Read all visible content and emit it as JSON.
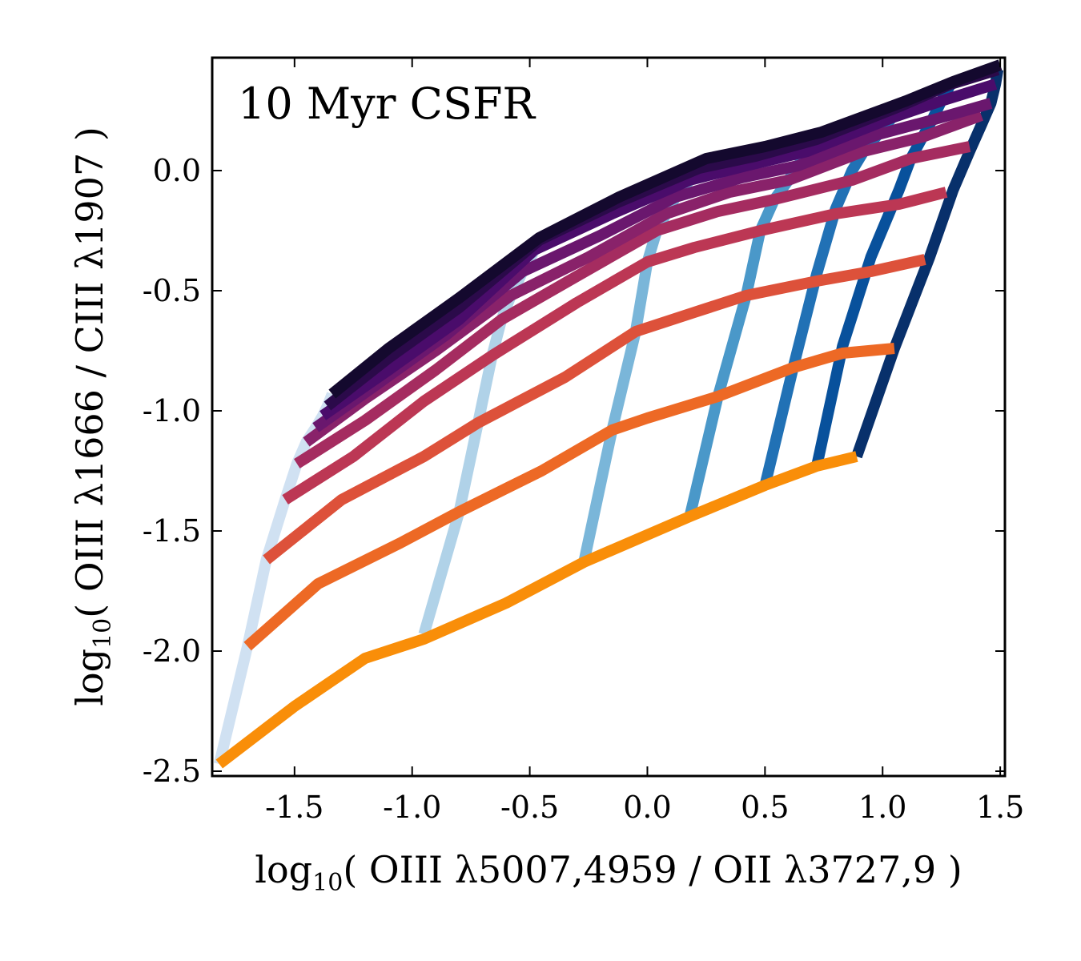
{
  "chart_data": {
    "type": "line",
    "annotation": "10 Myr CSFR",
    "xlabel": {
      "pre": "log",
      "sub": "10",
      "text": "( OIII λ5007,4959 / OII λ3727,9 )"
    },
    "ylabel": {
      "pre": "log",
      "sub": "10",
      "text": "( OIII λ1666 / CIII λ1907 )"
    },
    "xlim": [
      -1.85,
      1.52
    ],
    "ylim": [
      -2.52,
      0.47
    ],
    "xticks": [
      -1.5,
      -1.0,
      -0.5,
      0.0,
      0.5,
      1.0,
      1.5
    ],
    "xtick_labels": [
      "-1.5",
      "-1.0",
      "-0.5",
      "0.0",
      "0.5",
      "1.0",
      "1.5"
    ],
    "yticks": [
      0.0,
      -0.5,
      -1.0,
      -1.5,
      -2.0,
      -2.5
    ],
    "ytick_labels": [
      "0.0",
      "-0.5",
      "-1.0",
      "-1.5",
      "-2.0",
      "-2.5"
    ],
    "blue_series": [
      {
        "name": "blue-1",
        "color": "#d0e1f2",
        "x": [
          -1.82,
          -1.7,
          -1.62,
          -1.54,
          -1.49,
          -1.45,
          -1.41,
          -1.38,
          -1.36,
          -1.34
        ],
        "y": [
          -2.47,
          -1.98,
          -1.62,
          -1.37,
          -1.22,
          -1.13,
          -1.07,
          -1.02,
          -0.98,
          -0.93
        ]
      },
      {
        "name": "blue-2",
        "color": "#b0d2e8",
        "x": [
          -0.95,
          -0.8,
          -0.72,
          -0.66,
          -0.62,
          -0.58,
          -0.53,
          -0.48,
          -0.46
        ],
        "y": [
          -1.93,
          -1.42,
          -1.05,
          -0.77,
          -0.62,
          -0.52,
          -0.42,
          -0.33,
          -0.29
        ]
      },
      {
        "name": "blue-3",
        "color": "#7ab6d9",
        "x": [
          -0.27,
          -0.15,
          -0.05,
          0.0,
          0.04,
          0.08,
          0.12,
          0.18,
          0.22,
          0.25
        ],
        "y": [
          -1.63,
          -1.08,
          -0.67,
          -0.38,
          -0.25,
          -0.18,
          -0.11,
          -0.04,
          0.01,
          0.05
        ]
      },
      {
        "name": "blue-4",
        "color": "#4a98c9",
        "x": [
          0.18,
          0.3,
          0.42,
          0.48,
          0.54,
          0.6,
          0.64,
          0.68,
          0.72
        ],
        "y": [
          -1.44,
          -0.94,
          -0.52,
          -0.25,
          -0.12,
          -0.04,
          0.02,
          0.08,
          0.13
        ]
      },
      {
        "name": "blue-5",
        "color": "#2171b5",
        "x": [
          0.5,
          0.62,
          0.72,
          0.8,
          0.87,
          0.92,
          0.98,
          1.04,
          1.08
        ],
        "y": [
          -1.31,
          -0.82,
          -0.43,
          -0.16,
          0.0,
          0.08,
          0.15,
          0.22,
          0.27
        ]
      },
      {
        "name": "blue-6",
        "color": "#08519c",
        "x": [
          0.72,
          0.83,
          0.95,
          1.07,
          1.12,
          1.17,
          1.21,
          1.25,
          1.29
        ],
        "y": [
          -1.23,
          -0.73,
          -0.36,
          -0.08,
          0.05,
          0.14,
          0.21,
          0.29,
          0.36
        ]
      },
      {
        "name": "blue-7",
        "color": "#08306b",
        "x": [
          0.89,
          1.05,
          1.2,
          1.3,
          1.37,
          1.42,
          1.46,
          1.48,
          1.49
        ],
        "y": [
          -1.19,
          -0.74,
          -0.36,
          -0.08,
          0.08,
          0.19,
          0.28,
          0.36,
          0.42
        ]
      }
    ],
    "orange_series": [
      {
        "name": "line-1",
        "color": "#f98e09",
        "x": [
          -1.82,
          -1.5,
          -1.2,
          -0.95,
          -0.6,
          -0.27,
          0.18,
          0.5,
          0.72,
          0.89
        ],
        "y": [
          -2.47,
          -2.23,
          -2.03,
          -1.95,
          -1.8,
          -1.63,
          -1.44,
          -1.31,
          -1.23,
          -1.19
        ]
      },
      {
        "name": "line-2",
        "color": "#ed6925",
        "x": [
          -1.7,
          -1.4,
          -1.05,
          -0.8,
          -0.45,
          -0.15,
          0.0,
          0.3,
          0.62,
          0.83,
          1.05
        ],
        "y": [
          -1.98,
          -1.72,
          -1.55,
          -1.42,
          -1.25,
          -1.08,
          -1.03,
          -0.94,
          -0.82,
          -0.76,
          -0.74
        ]
      },
      {
        "name": "line-3",
        "color": "#dd513a",
        "x": [
          -1.62,
          -1.3,
          -0.95,
          -0.72,
          -0.35,
          -0.05,
          0.2,
          0.42,
          0.72,
          0.95,
          1.18
        ],
        "y": [
          -1.62,
          -1.37,
          -1.19,
          -1.05,
          -0.86,
          -0.67,
          -0.59,
          -0.52,
          -0.46,
          -0.42,
          -0.37
        ]
      },
      {
        "name": "line-4",
        "color": "#bc3754",
        "x": [
          -1.54,
          -1.25,
          -0.95,
          -0.66,
          -0.3,
          0.0,
          0.2,
          0.48,
          0.8,
          1.07,
          1.27
        ],
        "y": [
          -1.37,
          -1.19,
          -0.96,
          -0.77,
          -0.55,
          -0.38,
          -0.32,
          -0.25,
          -0.18,
          -0.14,
          -0.09
        ]
      },
      {
        "name": "line-5",
        "color": "#a52c60",
        "x": [
          -1.49,
          -1.2,
          -0.9,
          -0.62,
          -0.3,
          0.04,
          0.3,
          0.54,
          0.87,
          1.12,
          1.37
        ],
        "y": [
          -1.22,
          -1.04,
          -0.83,
          -0.62,
          -0.44,
          -0.25,
          -0.17,
          -0.12,
          -0.04,
          0.05,
          0.1
        ]
      },
      {
        "name": "line-6",
        "color": "#89226a",
        "x": [
          -1.45,
          -1.2,
          -0.9,
          -0.58,
          -0.25,
          0.08,
          0.35,
          0.6,
          0.92,
          1.17,
          1.42
        ],
        "y": [
          -1.13,
          -0.95,
          -0.75,
          -0.52,
          -0.36,
          -0.18,
          -0.09,
          -0.04,
          0.08,
          0.14,
          0.23
        ]
      },
      {
        "name": "line-7",
        "color": "#6a176e",
        "x": [
          -1.41,
          -1.15,
          -0.85,
          -0.53,
          -0.2,
          0.12,
          0.4,
          0.64,
          0.98,
          1.21,
          1.46
        ],
        "y": [
          -1.07,
          -0.89,
          -0.68,
          -0.42,
          -0.27,
          -0.11,
          -0.03,
          0.02,
          0.15,
          0.21,
          0.28
        ]
      },
      {
        "name": "line-8",
        "color": "#4a0c6b",
        "x": [
          -1.38,
          -1.1,
          -0.8,
          -0.48,
          -0.15,
          0.18,
          0.42,
          0.68,
          1.04,
          1.25,
          1.48
        ],
        "y": [
          -1.02,
          -0.83,
          -0.62,
          -0.33,
          -0.18,
          -0.04,
          0.02,
          0.08,
          0.22,
          0.29,
          0.36
        ]
      },
      {
        "name": "line-9",
        "color": "#2b0a4a",
        "x": [
          -1.36,
          -1.1,
          -0.8,
          -0.46,
          -0.12,
          0.22,
          0.46,
          0.72,
          1.08,
          1.29,
          1.49
        ],
        "y": [
          -0.98,
          -0.78,
          -0.57,
          -0.29,
          -0.13,
          0.01,
          0.06,
          0.13,
          0.27,
          0.36,
          0.42
        ]
      },
      {
        "name": "line-10",
        "color": "#14092e",
        "x": [
          -1.34,
          -1.1,
          -0.8,
          -0.46,
          -0.12,
          0.25,
          0.5,
          0.74,
          1.1,
          1.3,
          1.5
        ],
        "y": [
          -0.93,
          -0.74,
          -0.53,
          -0.28,
          -0.11,
          0.05,
          0.1,
          0.16,
          0.29,
          0.37,
          0.44
        ]
      }
    ]
  }
}
